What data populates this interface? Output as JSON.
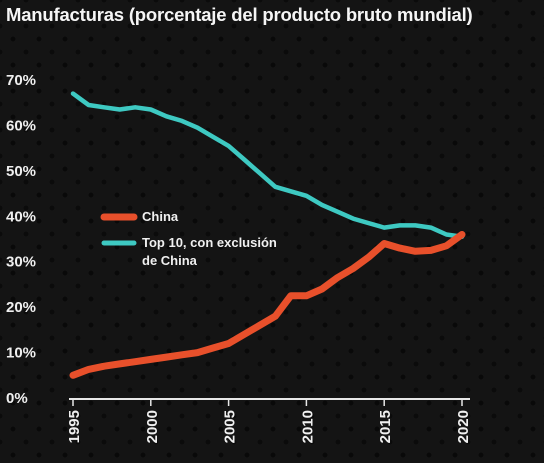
{
  "chart_data": {
    "type": "line",
    "title": "Manufacturas (porcentaje del producto bruto mundial)",
    "xlabel": "",
    "ylabel": "",
    "xlim": [
      1995,
      2020
    ],
    "ylim": [
      0,
      70
    ],
    "y_ticks": [
      0,
      10,
      20,
      30,
      40,
      50,
      60,
      70
    ],
    "y_tick_labels": [
      "0%",
      "10%",
      "20%",
      "30%",
      "40%",
      "50%",
      "60%",
      "70%"
    ],
    "x_ticks": [
      1995,
      2000,
      2005,
      2010,
      2015,
      2020
    ],
    "x_tick_labels": [
      "1995",
      "2000",
      "2005",
      "2010",
      "2015",
      "2020"
    ],
    "grid": false,
    "legend_position": "center-left",
    "series": [
      {
        "name": "China",
        "color": "#e8502b",
        "x": [
          1995,
          1996,
          1997,
          1998,
          1999,
          2000,
          2001,
          2002,
          2003,
          2004,
          2005,
          2006,
          2007,
          2008,
          2009,
          2010,
          2011,
          2012,
          2013,
          2014,
          2015,
          2016,
          2017,
          2018,
          2019,
          2020
        ],
        "y": [
          5,
          6.3,
          7,
          7.5,
          8,
          8.5,
          9,
          9.5,
          10,
          11,
          12,
          14,
          16,
          18,
          22.5,
          22.5,
          24,
          26.5,
          28.5,
          31,
          34,
          33,
          32.3,
          32.5,
          33.5,
          36
        ]
      },
      {
        "name": "Top 10, con exclusión de China",
        "color": "#3ec9c2",
        "x": [
          1995,
          1996,
          1997,
          1998,
          1999,
          2000,
          2001,
          2002,
          2003,
          2004,
          2005,
          2006,
          2007,
          2008,
          2009,
          2010,
          2011,
          2012,
          2013,
          2014,
          2015,
          2016,
          2017,
          2018,
          2019,
          2020
        ],
        "y": [
          67,
          64.5,
          64,
          63.5,
          64,
          63.5,
          62,
          61,
          59.5,
          57.5,
          55.5,
          52.5,
          49.5,
          46.5,
          45.5,
          44.5,
          42.5,
          41,
          39.5,
          38.5,
          37.5,
          38,
          38,
          37.5,
          36,
          35.5
        ]
      }
    ]
  }
}
